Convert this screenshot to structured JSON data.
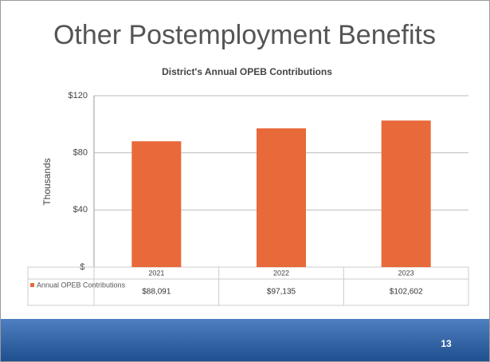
{
  "slide_title": "Other Postemployment Benefits",
  "page_number": "13",
  "chart_data": {
    "type": "bar",
    "title": "District's Annual OPEB Contributions",
    "y_label": "Thousands",
    "categories": [
      "2021",
      "2022",
      "2023"
    ],
    "series": [
      {
        "name": "Annual OPEB Contributions",
        "color": "#e8693a",
        "values": [
          88.091,
          97.135,
          102.602
        ],
        "value_labels": [
          "$88,091",
          "$97,135",
          "$102,602"
        ]
      }
    ],
    "ylim": [
      0,
      120
    ],
    "yticks": [
      {
        "value": 0,
        "label": "$-"
      },
      {
        "value": 40,
        "label": "$40"
      },
      {
        "value": 80,
        "label": "$80"
      },
      {
        "value": 120,
        "label": "$120"
      }
    ],
    "grid": true,
    "legend": "table"
  }
}
